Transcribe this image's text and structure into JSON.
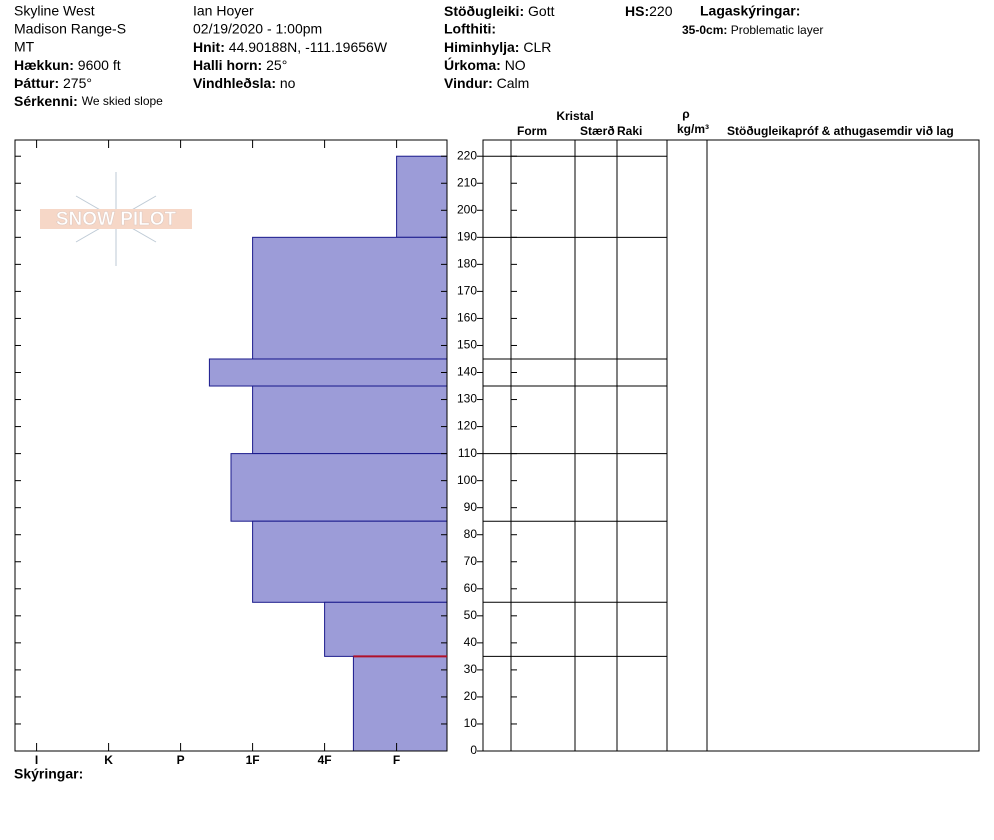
{
  "header": {
    "location": "Skyline West",
    "range": "Madison Range-S",
    "state": "MT",
    "elevation": {
      "label": "Hækkun:",
      "value": "9600 ft"
    },
    "aspect": {
      "label": "Þáttur:",
      "value": "275°"
    },
    "features": {
      "label": "Sérkenni:",
      "value": "We skied slope"
    },
    "observer": "Ian Hoyer",
    "datetime": "02/19/2020 - 1:00pm",
    "coords": {
      "label": "Hnit:",
      "value": "44.90188N, -111.19656W"
    },
    "slope": {
      "label": "Halli horn:",
      "value": "25°"
    },
    "wind_loading": {
      "label": "Vindhleðsla:",
      "value": "no"
    },
    "stability": {
      "label": "Stöðugleiki:",
      "value": "Gott"
    },
    "air_temp": {
      "label": "Lofthiti:"
    },
    "sky": {
      "label": "Himinhylja:",
      "value": "CLR"
    },
    "precip": {
      "label": "Úrkoma:",
      "value": "NO"
    },
    "wind": {
      "label": "Vindur:",
      "value": "Calm"
    },
    "hs": {
      "label": "HS:",
      "value": "220"
    },
    "layer_notes": {
      "label": "Lagaskýringar:",
      "range": "35-0cm:",
      "text": "Problematic layer"
    },
    "notes_label": "Skýringar:",
    "logo": "SNOW PILOT"
  },
  "table": {
    "crystal": "Kristal",
    "form": "Form",
    "size": "Stærð",
    "moisture": "Raki",
    "rho": "ρ",
    "density_unit": "kg/m³",
    "comments": "Stöðugleikapróf & athugasemdir við lag"
  },
  "chart_data": {
    "type": "snow-profile",
    "layers": [
      {
        "top": 220,
        "bottom": 190,
        "hardness": 1
      },
      {
        "top": 190,
        "bottom": 145,
        "hardness": 3
      },
      {
        "top": 145,
        "bottom": 135,
        "hardness": 3.6
      },
      {
        "top": 135,
        "bottom": 110,
        "hardness": 3
      },
      {
        "top": 110,
        "bottom": 85,
        "hardness": 3.3
      },
      {
        "top": 85,
        "bottom": 55,
        "hardness": 3
      },
      {
        "top": 55,
        "bottom": 35,
        "hardness": 2
      },
      {
        "top": 35,
        "bottom": 0,
        "hardness": 1.6
      }
    ],
    "problem_depth": 35,
    "color": "#9c9cd8",
    "edge_color": "#1a1a8c",
    "problem_color": "#b0102a",
    "xlim": [
      6.3,
      0.3
    ],
    "xticks": [
      {
        "value": 6,
        "label": "I"
      },
      {
        "value": 5,
        "label": "K"
      },
      {
        "value": 4,
        "label": "P"
      },
      {
        "value": 3,
        "label": "1F"
      },
      {
        "value": 2,
        "label": "4F"
      },
      {
        "value": 1,
        "label": "F"
      }
    ],
    "ylim": [
      0,
      226
    ],
    "yticks": [
      0,
      10,
      20,
      30,
      40,
      50,
      60,
      70,
      80,
      90,
      100,
      110,
      120,
      130,
      140,
      150,
      160,
      170,
      180,
      190,
      200,
      210,
      220
    ]
  }
}
